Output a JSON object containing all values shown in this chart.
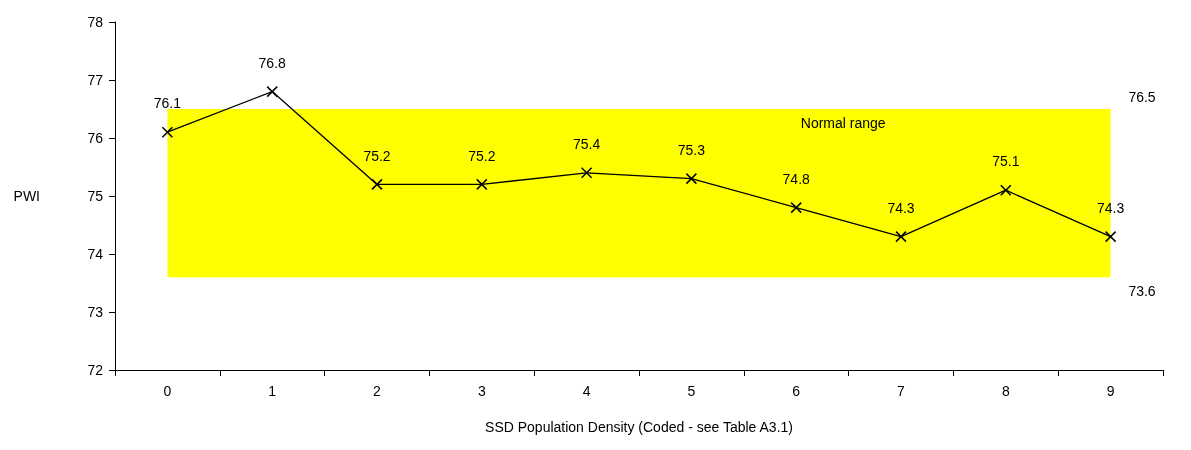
{
  "chart_data": {
    "type": "line",
    "xlabel": "SSD Population Density (Coded - see Table A3.1)",
    "ylabel": "PWI",
    "categories": [
      "0",
      "1",
      "2",
      "3",
      "4",
      "5",
      "6",
      "7",
      "8",
      "9"
    ],
    "series": [
      {
        "color": "#000000",
        "values": [
          76.1,
          76.8,
          75.2,
          75.2,
          75.4,
          75.3,
          74.8,
          74.3,
          75.1,
          74.3
        ]
      }
    ],
    "ylim": [
      72,
      78
    ],
    "yticks": [
      72,
      73,
      74,
      75,
      76,
      77,
      78
    ],
    "grid": false,
    "marker": "cross",
    "line_style": "solid",
    "data_labels": true,
    "bands": [
      {
        "axis": "y",
        "from": 73.6,
        "to": 76.5,
        "label": "Normal range",
        "color": "#ffff00"
      }
    ],
    "annotations": [
      "76.5",
      "73.6"
    ]
  }
}
